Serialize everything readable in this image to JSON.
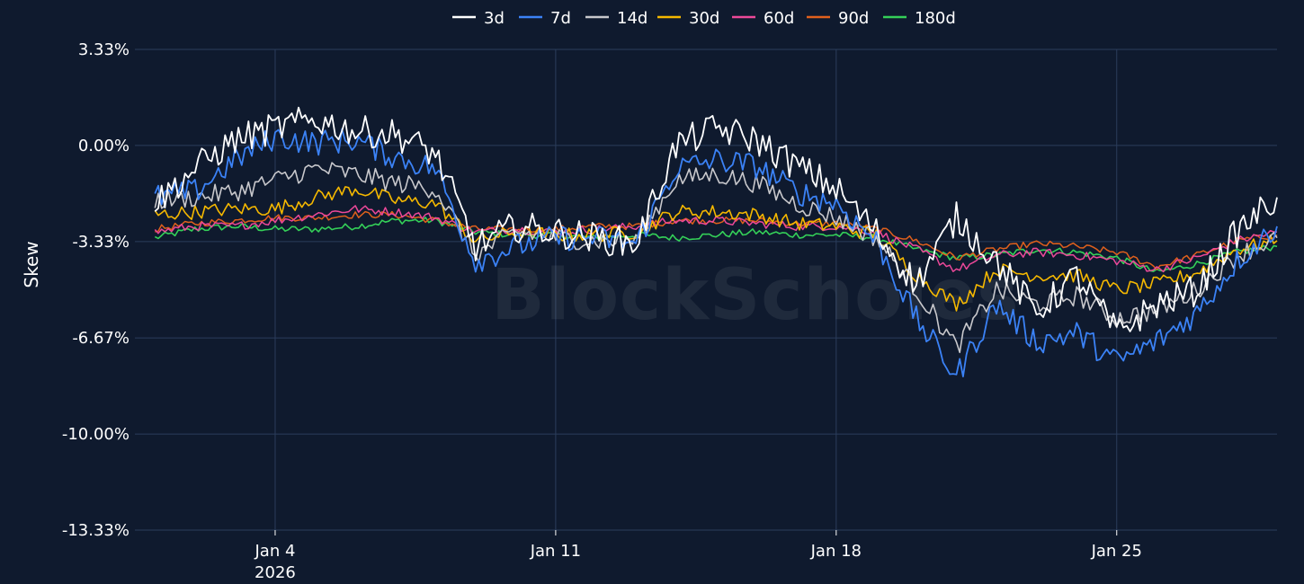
{
  "chart_data": {
    "type": "line",
    "title": "",
    "ylabel": "Skew",
    "watermark": "BlockScholes",
    "background": "#0f1a2e",
    "grid": true,
    "legend_position": "top-center",
    "ylim": [
      -13.33,
      3.33
    ],
    "yticks": [
      {
        "value": 3.33,
        "label": "3.33%"
      },
      {
        "value": 0.0,
        "label": "0.00%"
      },
      {
        "value": -3.33,
        "label": "-3.33%"
      },
      {
        "value": -6.67,
        "label": "-6.67%"
      },
      {
        "value": -10.0,
        "label": "-10.00%"
      },
      {
        "value": -13.33,
        "label": "-13.33%"
      }
    ],
    "xlim": [
      "2025-12-31T12:00",
      "2026-01-29T00:00"
    ],
    "xticks": [
      {
        "value": "2026-01-04",
        "label": "Jan 4",
        "sublabel": "2026"
      },
      {
        "value": "2026-01-11",
        "label": "Jan 11",
        "sublabel": ""
      },
      {
        "value": "2026-01-18",
        "label": "Jan 18",
        "sublabel": ""
      },
      {
        "value": "2026-01-25",
        "label": "Jan 25",
        "sublabel": ""
      }
    ],
    "x": [
      "2026-01-01",
      "2026-01-02",
      "2026-01-03",
      "2026-01-04",
      "2026-01-05",
      "2026-01-06",
      "2026-01-07",
      "2026-01-08",
      "2026-01-09",
      "2026-01-10",
      "2026-01-11",
      "2026-01-12",
      "2026-01-13",
      "2026-01-14",
      "2026-01-15",
      "2026-01-16",
      "2026-01-17",
      "2026-01-18",
      "2026-01-19",
      "2026-01-20",
      "2026-01-21",
      "2026-01-22",
      "2026-01-23",
      "2026-01-24",
      "2026-01-25",
      "2026-01-26",
      "2026-01-27",
      "2026-01-28",
      "2026-01-29"
    ],
    "series": [
      {
        "name": "3d",
        "color": "#ffffff",
        "width": 1.8,
        "values": [
          -2.0,
          -0.8,
          0.2,
          0.6,
          0.9,
          0.5,
          0.4,
          -0.3,
          -3.5,
          -2.8,
          -3.0,
          -3.2,
          -3.4,
          0.0,
          0.6,
          0.2,
          -0.7,
          -1.5,
          -3.0,
          -4.8,
          -2.5,
          -4.0,
          -5.8,
          -4.5,
          -6.5,
          -5.5,
          -5.0,
          -3.0,
          -1.8
        ]
      },
      {
        "name": "7d",
        "color": "#3b82f6",
        "width": 1.8,
        "values": [
          -1.8,
          -1.6,
          -0.5,
          0.3,
          0.1,
          0.2,
          -0.4,
          -0.8,
          -4.0,
          -3.5,
          -3.2,
          -3.2,
          -3.4,
          -0.8,
          -0.5,
          -0.7,
          -1.6,
          -2.0,
          -3.3,
          -6.0,
          -8.0,
          -5.5,
          -6.8,
          -6.5,
          -7.5,
          -6.8,
          -5.8,
          -4.0,
          -2.8
        ]
      },
      {
        "name": "14d",
        "color": "#c8c8cc",
        "width": 1.6,
        "values": [
          -1.9,
          -1.8,
          -1.6,
          -1.2,
          -0.8,
          -1.0,
          -1.3,
          -1.5,
          -3.8,
          -3.0,
          -3.2,
          -3.3,
          -3.3,
          -1.2,
          -1.0,
          -1.3,
          -2.0,
          -2.5,
          -3.2,
          -5.0,
          -7.0,
          -5.0,
          -5.5,
          -5.2,
          -6.0,
          -5.7,
          -5.0,
          -3.8,
          -3.2
        ]
      },
      {
        "name": "30d",
        "color": "#f5b800",
        "width": 1.6,
        "values": [
          -2.4,
          -2.3,
          -2.2,
          -2.2,
          -1.8,
          -1.5,
          -1.9,
          -2.0,
          -3.3,
          -3.0,
          -3.1,
          -3.1,
          -3.0,
          -2.3,
          -2.3,
          -2.4,
          -2.7,
          -2.8,
          -3.1,
          -4.5,
          -5.5,
          -4.3,
          -4.5,
          -4.5,
          -5.0,
          -4.8,
          -4.4,
          -3.6,
          -3.3
        ]
      },
      {
        "name": "60d",
        "color": "#ec4899",
        "width": 1.5,
        "values": [
          -3.0,
          -2.8,
          -2.8,
          -2.6,
          -2.4,
          -2.2,
          -2.3,
          -2.5,
          -3.0,
          -2.9,
          -3.0,
          -2.9,
          -2.8,
          -2.6,
          -2.6,
          -2.7,
          -2.8,
          -2.8,
          -3.0,
          -3.6,
          -4.3,
          -3.8,
          -3.7,
          -3.8,
          -4.0,
          -4.3,
          -3.9,
          -3.3,
          -3.0
        ]
      },
      {
        "name": "90d",
        "color": "#e0601c",
        "width": 1.5,
        "values": [
          -2.9,
          -2.7,
          -2.6,
          -2.5,
          -2.5,
          -2.4,
          -2.4,
          -2.6,
          -2.9,
          -2.9,
          -2.9,
          -2.8,
          -2.8,
          -2.6,
          -2.6,
          -2.6,
          -2.7,
          -2.7,
          -2.9,
          -3.3,
          -3.9,
          -3.6,
          -3.4,
          -3.5,
          -3.7,
          -4.2,
          -3.8,
          -3.3,
          -3.1
        ]
      },
      {
        "name": "180d",
        "color": "#34d058",
        "width": 1.6,
        "values": [
          -3.2,
          -2.9,
          -2.8,
          -2.9,
          -2.9,
          -2.8,
          -2.6,
          -2.6,
          -3.0,
          -3.1,
          -3.1,
          -3.2,
          -3.1,
          -3.2,
          -3.1,
          -3.0,
          -3.1,
          -3.1,
          -3.2,
          -3.6,
          -3.9,
          -3.8,
          -3.6,
          -3.7,
          -3.9,
          -4.4,
          -4.1,
          -3.7,
          -3.5
        ]
      }
    ]
  }
}
